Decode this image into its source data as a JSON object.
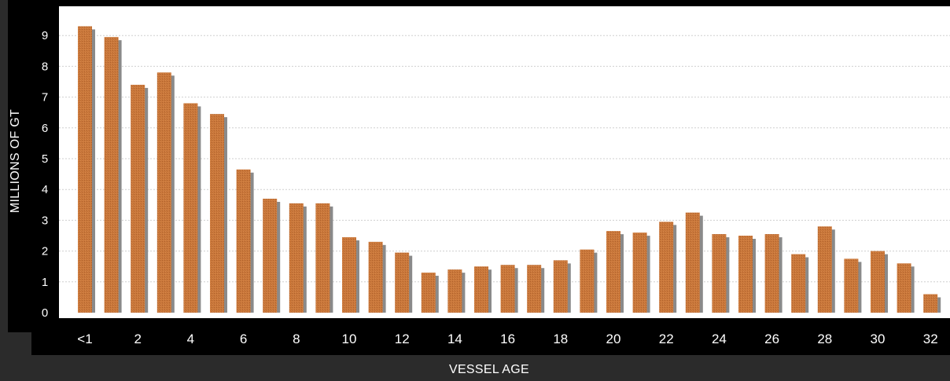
{
  "chart_data": {
    "type": "bar",
    "title": "",
    "xlabel": "VESSEL AGE",
    "ylabel": "MILLIONS OF GT",
    "ylim": [
      0,
      10
    ],
    "yticks": [
      "0",
      "1",
      "2",
      "3",
      "4",
      "5",
      "6",
      "7",
      "8",
      "9"
    ],
    "grid": true,
    "legend": "none",
    "categories": [
      "<1",
      "1",
      "2",
      "3",
      "4",
      "5",
      "6",
      "7",
      "8",
      "9",
      "10",
      "11",
      "12",
      "13",
      "14",
      "15",
      "16",
      "17",
      "18",
      "19",
      "20",
      "21",
      "22",
      "23",
      "24",
      "25",
      "26",
      "27",
      "28",
      "29",
      "30",
      "31",
      "32"
    ],
    "xtick_labels": [
      "<1",
      "2",
      "4",
      "6",
      "8",
      "10",
      "12",
      "14",
      "16",
      "18",
      "20",
      "22",
      "24",
      "26",
      "28",
      "30",
      "32"
    ],
    "values": [
      9.3,
      8.95,
      7.4,
      7.8,
      6.8,
      6.45,
      4.65,
      3.7,
      3.55,
      3.55,
      2.45,
      2.3,
      1.95,
      1.3,
      1.4,
      1.5,
      1.55,
      1.55,
      1.7,
      2.05,
      2.65,
      2.6,
      2.95,
      3.25,
      2.55,
      2.5,
      2.55,
      1.9,
      2.8,
      1.75,
      2.0,
      1.6,
      0.6
    ],
    "colors": {
      "bar": "#c8763a",
      "bar_shadow": "#8a8a8a",
      "plot_bg": "#ffffff",
      "grid": "#cfcfcf",
      "frame": "#000000",
      "page_bg": "#2b2b2b"
    }
  }
}
